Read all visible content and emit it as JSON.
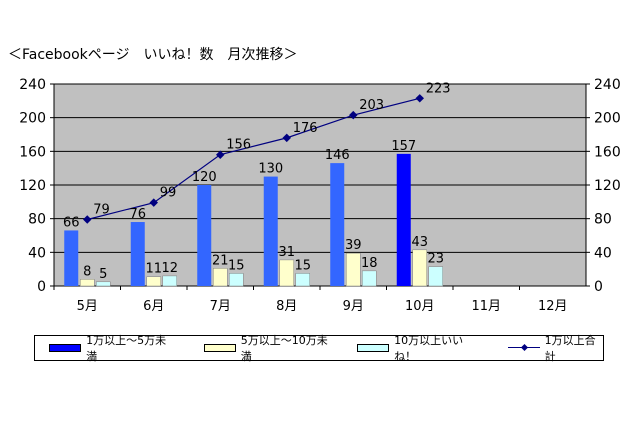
{
  "chart_data": {
    "type": "bar",
    "title": "＜Facebookページ　いいね！数　月次推移＞",
    "categories": [
      "5月",
      "6月",
      "7月",
      "8月",
      "9月",
      "10月",
      "11月",
      "12月"
    ],
    "ylim": [
      0,
      240
    ],
    "yticks": [
      0,
      40,
      80,
      120,
      160,
      200,
      240
    ],
    "y2lim": [
      0,
      240
    ],
    "grid": true,
    "legend_position": "bottom",
    "series": [
      {
        "name": "1万以上～5万未満",
        "type": "bar",
        "values": [
          66,
          76,
          120,
          130,
          146,
          157,
          null,
          null
        ]
      },
      {
        "name": "5万以上～10万未満",
        "type": "bar",
        "values": [
          8,
          11,
          21,
          31,
          39,
          43,
          null,
          null
        ]
      },
      {
        "name": "10万以上いいね！",
        "type": "bar",
        "values": [
          5,
          12,
          15,
          15,
          18,
          23,
          null,
          null
        ]
      },
      {
        "name": "1万以上合計",
        "type": "line",
        "values": [
          79,
          99,
          156,
          176,
          203,
          223,
          null,
          null
        ]
      }
    ],
    "highlight_index": 5,
    "colors": {
      "plot_bg": "#c0c0c0",
      "bar1": "#3366ff",
      "bar1_highlight": "#0000ff",
      "bar2": "#ffffcc",
      "bar3": "#ccffff",
      "line": "#000080",
      "grid": "#000000"
    }
  }
}
